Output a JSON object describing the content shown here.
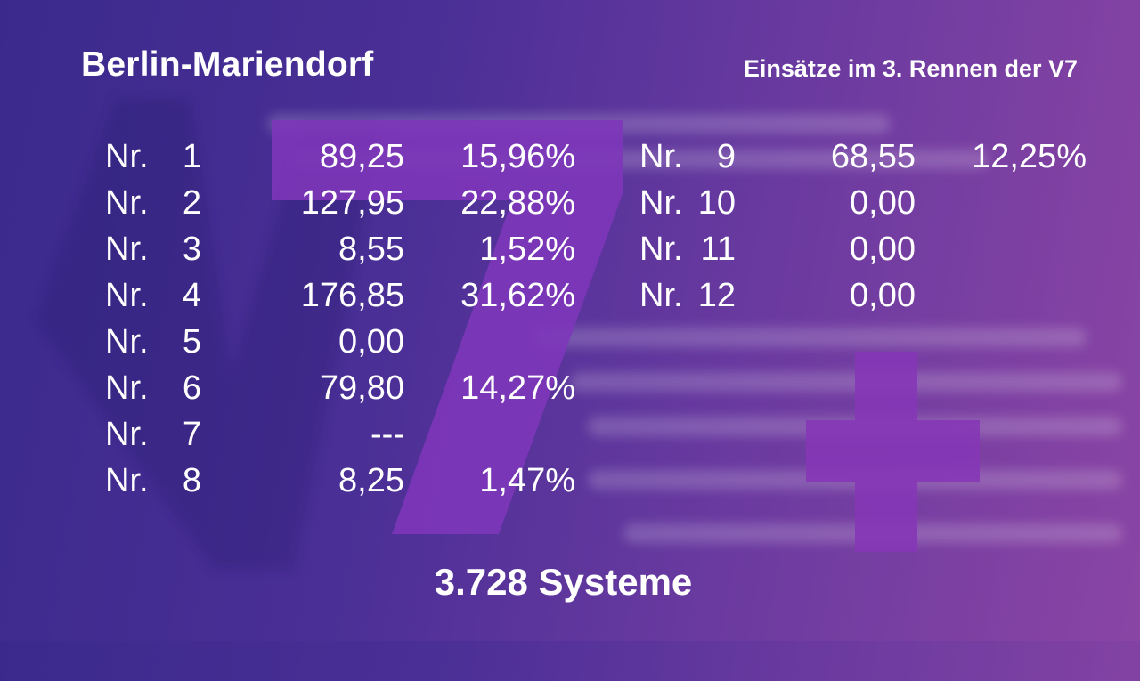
{
  "header": {
    "title": "Berlin-Mariendorf",
    "subtitle": "Einsätze im 3. Rennen der V7"
  },
  "logo_watermark": "V7+",
  "left_column": [
    {
      "prefix": "Nr.",
      "number": "1",
      "amount": "89,25",
      "percent": "15,96%"
    },
    {
      "prefix": "Nr.",
      "number": "2",
      "amount": "127,95",
      "percent": "22,88%"
    },
    {
      "prefix": "Nr.",
      "number": "3",
      "amount": "8,55",
      "percent": "1,52%"
    },
    {
      "prefix": "Nr.",
      "number": "4",
      "amount": "176,85",
      "percent": "31,62%"
    },
    {
      "prefix": "Nr.",
      "number": "5",
      "amount": "0,00",
      "percent": ""
    },
    {
      "prefix": "Nr.",
      "number": "6",
      "amount": "79,80",
      "percent": "14,27%"
    },
    {
      "prefix": "Nr.",
      "number": "7",
      "amount": "---",
      "percent": ""
    },
    {
      "prefix": "Nr.",
      "number": "8",
      "amount": "8,25",
      "percent": "1,47%"
    }
  ],
  "right_column": [
    {
      "prefix": "Nr.",
      "number": "9",
      "amount": "68,55",
      "percent": "12,25%"
    },
    {
      "prefix": "Nr.",
      "number": "10",
      "amount": "0,00",
      "percent": ""
    },
    {
      "prefix": "Nr.",
      "number": "11",
      "amount": "0,00",
      "percent": ""
    },
    {
      "prefix": "Nr.",
      "number": "12",
      "amount": "0,00",
      "percent": ""
    }
  ],
  "footer": {
    "systems": "3.728 Systeme"
  },
  "colors": {
    "background_start": "#3b2a8c",
    "background_end": "#8a45a4",
    "text": "#ffffff",
    "logo_purple": "#7f35b8"
  }
}
